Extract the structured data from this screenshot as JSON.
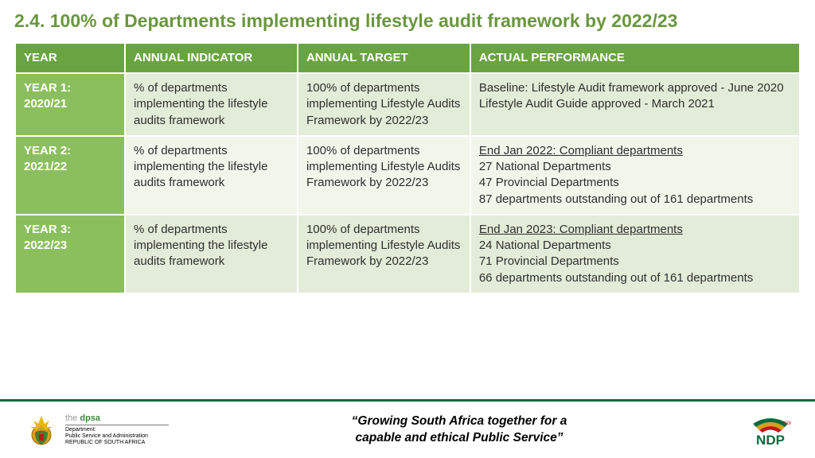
{
  "colors": {
    "title": "#6a963f",
    "header_bg": "#6aa442",
    "year_col_bg": "#8bbf5e",
    "row_even_bg": "#e3ecd8",
    "row_odd_bg": "#f1f5ea",
    "body_text": "#2f2f2f",
    "footer_rule": "#0a6b3f",
    "dpsa_green": "#3a8a3f",
    "ndp_green": "#0a6b3f",
    "ndp_red": "#c01818",
    "ndp_gold": "#d4a017"
  },
  "title": "2.4. 100% of Departments implementing lifestyle audit framework by 2022/23",
  "table": {
    "col_widths": [
      "14%",
      "22%",
      "22%",
      "42%"
    ],
    "headers": [
      "YEAR",
      "ANNUAL INDICATOR",
      "ANNUAL TARGET",
      " ACTUAL PERFORMANCE"
    ],
    "rows": [
      {
        "year": "YEAR 1: 2020/21",
        "indicator": "% of departments implementing the lifestyle audits framework",
        "target": "100% of departments implementing Lifestyle Audits Framework by 2022/23",
        "performance_underline": "",
        "performance_rest": "Baseline: Lifestyle Audit framework approved - June 2020\nLifestyle Audit Guide approved - March 2021"
      },
      {
        "year": "YEAR 2: 2021/22",
        "indicator": "% of departments implementing the lifestyle audits framework",
        "target": "100% of departments implementing Lifestyle Audits Framework by 2022/23",
        "performance_underline": "End Jan 2022: Compliant departments",
        "performance_rest": "27 National Departments\n47 Provincial Departments\n87 departments outstanding out of 161 departments"
      },
      {
        "year": "YEAR 3: 2022/23",
        "indicator": "% of departments implementing the lifestyle audits framework",
        "target": "100% of departments implementing Lifestyle Audits Framework by 2022/23",
        "performance_underline": "End Jan 2023: Compliant departments",
        "performance_rest": "24 National Departments\n71 Provincial Departments\n66 departments outstanding out of 161 departments"
      }
    ]
  },
  "footer": {
    "dpsa": {
      "line1_the": "the ",
      "line1_dpsa": "dpsa",
      "line2": "Department:",
      "line3": "Public Service and Administration",
      "line4": "REPUBLIC OF SOUTH AFRICA"
    },
    "quote_line1": "“Growing South Africa together for a",
    "quote_line2": "capable and ethical Public Service”",
    "ndp_label": "NDP",
    "ndp_year": "2030"
  }
}
